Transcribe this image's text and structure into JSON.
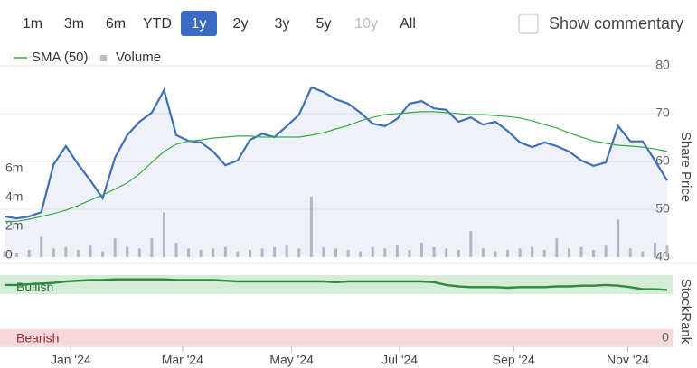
{
  "ui": {
    "ranges": [
      "1m",
      "3m",
      "6m",
      "YTD",
      "1y",
      "2y",
      "3y",
      "5y",
      "10y",
      "All"
    ],
    "active": "1y",
    "disabled": [
      "10y"
    ],
    "commentary": "Show commentary"
  },
  "chart_data": [
    {
      "type": "line",
      "ylabel": "Share Price",
      "grid": true,
      "ylim": [
        40,
        80
      ],
      "yticks": [
        40,
        50,
        60,
        70,
        80
      ],
      "y2lim": [
        0,
        13250000
      ],
      "y2ticks": [
        0,
        {
          "value": 2000000,
          "label": "2m"
        },
        {
          "value": 4000000,
          "label": "4m"
        },
        {
          "value": 6000000,
          "label": "6m"
        }
      ],
      "xticks": [
        {
          "value": 5.4,
          "label": "Jan '24"
        },
        {
          "value": 14.5,
          "label": "Mar '24"
        },
        {
          "value": 23.4,
          "label": "May '24"
        },
        {
          "value": 32.2,
          "label": "Jul '24"
        },
        {
          "value": 41.5,
          "label": "Sep '24"
        },
        {
          "value": 50.8,
          "label": "Nov '24"
        }
      ],
      "series": [
        {
          "color": "#3f6fb5",
          "fill": true,
          "values": [
            48.5,
            48.1,
            48.5,
            49.4,
            59.4,
            63.2,
            59.4,
            56.0,
            52.3,
            60.8,
            65.5,
            68.3,
            70.2,
            74.9,
            65.5,
            64.3,
            64.0,
            62.1,
            59.2,
            60.2,
            64.5,
            65.8,
            65.1,
            67.4,
            69.8,
            75.5,
            74.5,
            73.0,
            72.1,
            70.2,
            67.9,
            67.4,
            68.9,
            72.1,
            72.6,
            71.1,
            70.8,
            68.3,
            69.2,
            67.7,
            68.3,
            66.4,
            64.0,
            63.0,
            64.0,
            63.2,
            62.1,
            60.2,
            59.1,
            59.8,
            67.4,
            64.2,
            64.2,
            60.2,
            56.0
          ]
        },
        {
          "name": "SMA (50)",
          "color": "#3aa845",
          "values": [
            47.5,
            47.5,
            47.9,
            48.5,
            49.1,
            49.8,
            50.8,
            51.9,
            53.0,
            54.2,
            55.5,
            57.4,
            59.8,
            62.1,
            63.6,
            64.2,
            64.5,
            64.9,
            65.1,
            65.3,
            65.3,
            65.1,
            65.1,
            65.1,
            65.1,
            65.5,
            66.0,
            66.8,
            67.5,
            68.5,
            69.2,
            69.8,
            70.0,
            70.2,
            70.4,
            70.4,
            70.2,
            70.0,
            69.8,
            69.8,
            69.6,
            69.4,
            69.1,
            68.5,
            67.7,
            67.0,
            66.0,
            65.1,
            64.3,
            63.8,
            63.4,
            63.2,
            63.0,
            62.6,
            62.1
          ]
        },
        {
          "name": "Volume",
          "type": "bar",
          "axis": "y2",
          "color": "#bdbdc4",
          "values": [
            400000,
            300000,
            500000,
            1400000,
            600000,
            700000,
            500000,
            800000,
            400000,
            1300000,
            700000,
            600000,
            1300000,
            3100000,
            1000000,
            600000,
            500000,
            600000,
            700000,
            400000,
            500000,
            600000,
            700000,
            800000,
            600000,
            4200000,
            700000,
            600000,
            500000,
            400000,
            700000,
            600000,
            800000,
            500000,
            1000000,
            700000,
            600000,
            500000,
            1800000,
            600000,
            400000,
            500000,
            600000,
            700000,
            500000,
            1300000,
            600000,
            700000,
            500000,
            800000,
            2600000,
            600000,
            400000,
            1000000,
            800000
          ]
        }
      ]
    },
    {
      "type": "line",
      "ylabel": "StockRank",
      "ylim": [
        0,
        100
      ],
      "yticks": [
        0
      ],
      "zones": [
        {
          "label": "Bullish",
          "range": [
            73,
            100
          ],
          "color": "#d5ecd7"
        },
        {
          "label": "Bearish",
          "range": [
            0,
            23
          ],
          "color": "#f7d7d9"
        }
      ],
      "series": [
        {
          "color": "#2e8b3e",
          "values": [
            86,
            86,
            87,
            88,
            89,
            91,
            92,
            93,
            93,
            94,
            94,
            94,
            94,
            94,
            93,
            93,
            93,
            93,
            92,
            91,
            91,
            91,
            91,
            91,
            91,
            91,
            91,
            90,
            91,
            91,
            91,
            91,
            91,
            91,
            91,
            90,
            86,
            84,
            83,
            83,
            83,
            82,
            83,
            83,
            83,
            84,
            84,
            85,
            85,
            86,
            85,
            83,
            80,
            80,
            79
          ]
        }
      ]
    }
  ]
}
